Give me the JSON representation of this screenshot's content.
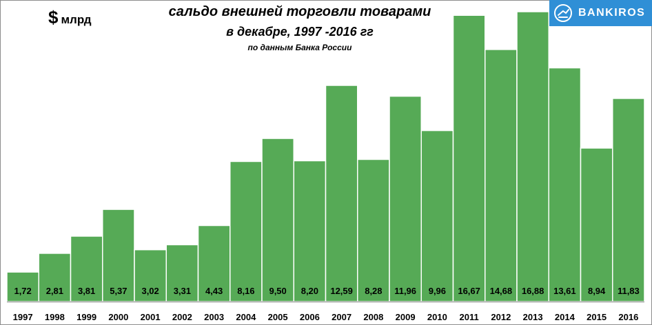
{
  "unit": {
    "symbol": "$",
    "text": "млрд"
  },
  "title": {
    "line1": "сальдо внешней торговли товарами",
    "line2": "в декабре,  1997 -2016 гг",
    "source": "по данным Банка России"
  },
  "logo": {
    "text": "BANKIROS"
  },
  "colors": {
    "bar": "#56aa56",
    "bar_edge": "#ffffff",
    "axis": "#7f7f7f"
  },
  "chart_data": {
    "type": "bar",
    "categories": [
      "1997",
      "1998",
      "1999",
      "2000",
      "2001",
      "2002",
      "2003",
      "2004",
      "2005",
      "2006",
      "2007",
      "2008",
      "2009",
      "2010",
      "2011",
      "2012",
      "2013",
      "2014",
      "2015",
      "2016"
    ],
    "values": [
      1.72,
      2.81,
      3.81,
      5.37,
      3.02,
      3.31,
      4.43,
      8.16,
      9.5,
      8.2,
      12.59,
      8.28,
      11.96,
      9.96,
      16.67,
      14.68,
      16.88,
      13.61,
      8.94,
      11.83
    ],
    "value_labels": [
      "1,72",
      "2,81",
      "3,81",
      "5,37",
      "3,02",
      "3,31",
      "4,43",
      "8,16",
      "9,50",
      "8,20",
      "12,59",
      "8,28",
      "11,96",
      "9,96",
      "16,67",
      "14,68",
      "16,88",
      "13,61",
      "8,94",
      "11,83"
    ],
    "title": "сальдо внешней торговли товарами в декабре,  1997 -2016 гг",
    "ylabel": "$ млрд",
    "ylim": [
      0,
      17
    ],
    "grid": false,
    "legend": "none"
  }
}
